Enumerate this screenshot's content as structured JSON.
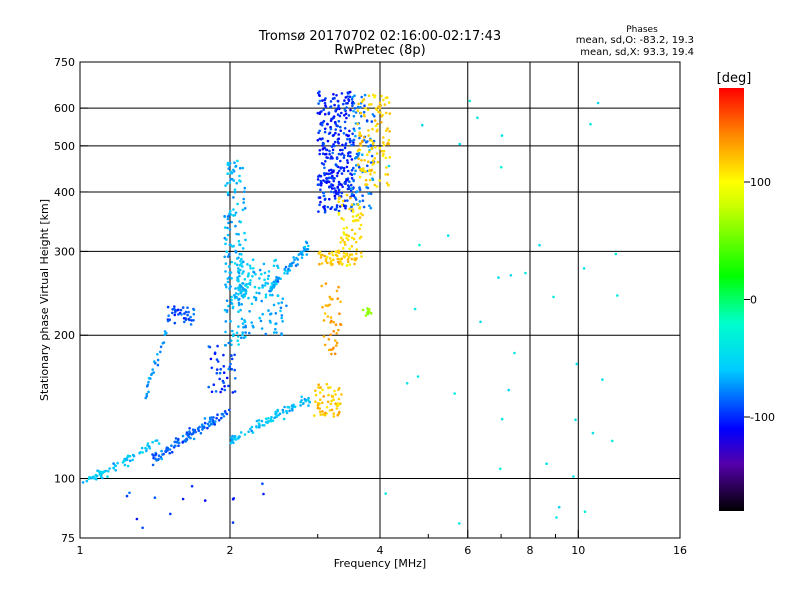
{
  "chart_data": {
    "type": "scatter",
    "title": "Tromsø 20170702 02:16:00-02:17:43",
    "subtitle": "RwPretec (8p)",
    "xlabel": "Frequency [MHz]",
    "ylabel": "Stationary phase Virtual Height [km]",
    "x_scale": "log",
    "y_scale": "log",
    "xlim": [
      1,
      16
    ],
    "ylim": [
      75,
      750
    ],
    "x_ticks": [
      1,
      2,
      4,
      6,
      8,
      10,
      16
    ],
    "x_tick_labels": [
      "1",
      "2",
      "4",
      "6",
      "8",
      "10",
      "16"
    ],
    "x_minor_ticks": [
      3,
      5,
      7,
      9
    ],
    "y_ticks": [
      75,
      100,
      200,
      300,
      400,
      500,
      600,
      750
    ],
    "y_tick_labels": [
      "75",
      "100",
      "200",
      "300",
      "400",
      "500",
      "600",
      "750"
    ],
    "grid": true,
    "legend": {
      "heading": "Phases",
      "lines": [
        "mean, sd,O: -83.2, 19.3",
        "mean, sd,X: 93.3, 19.4"
      ],
      "position": "top-right"
    },
    "colorbar": {
      "label": "[deg]",
      "range": [
        -180,
        180
      ],
      "ticks": [
        100,
        0,
        -100
      ],
      "tick_labels": [
        "100",
        "0",
        "-100"
      ],
      "stops": [
        {
          "v": -180,
          "c": "#000000"
        },
        {
          "v": -140,
          "c": "#5500aa"
        },
        {
          "v": -110,
          "c": "#0000ff"
        },
        {
          "v": -60,
          "c": "#00ccff"
        },
        {
          "v": -20,
          "c": "#00ffcc"
        },
        {
          "v": 20,
          "c": "#00ff00"
        },
        {
          "v": 80,
          "c": "#ccff00"
        },
        {
          "v": 100,
          "c": "#ffff00"
        },
        {
          "v": 140,
          "c": "#ff8800"
        },
        {
          "v": 180,
          "c": "#ff0000"
        }
      ]
    },
    "clusters": [
      {
        "f": [
          1.0,
          1.45
        ],
        "h": [
          97,
          120
        ],
        "shape": "rise",
        "n": 70,
        "phase": -60
      },
      {
        "f": [
          1.4,
          2.0
        ],
        "h": [
          110,
          140
        ],
        "shape": "rise",
        "n": 110,
        "phase": -85
      },
      {
        "f": [
          1.35,
          1.5
        ],
        "h": [
          150,
          205
        ],
        "shape": "rise",
        "n": 25,
        "phase": -75
      },
      {
        "f": [
          1.5,
          1.7
        ],
        "h": [
          210,
          230
        ],
        "shape": "band",
        "n": 40,
        "phase": -90
      },
      {
        "f": [
          1.8,
          2.05
        ],
        "h": [
          150,
          190
        ],
        "shape": "band",
        "n": 40,
        "phase": -95
      },
      {
        "f": [
          1.95,
          2.15
        ],
        "h": [
          190,
          470
        ],
        "shape": "band",
        "n": 170,
        "phase": -65
      },
      {
        "f": [
          2.0,
          2.9
        ],
        "h": [
          120,
          148
        ],
        "shape": "rise",
        "n": 90,
        "phase": -60
      },
      {
        "f": [
          2.05,
          2.5
        ],
        "h": [
          240,
          290
        ],
        "shape": "band",
        "n": 90,
        "phase": -60
      },
      {
        "f": [
          2.4,
          2.9
        ],
        "h": [
          250,
          310
        ],
        "shape": "rise",
        "n": 60,
        "phase": -70
      },
      {
        "f": [
          2.1,
          2.6
        ],
        "h": [
          200,
          240
        ],
        "shape": "band",
        "n": 40,
        "phase": -70
      },
      {
        "f": [
          3.0,
          3.55
        ],
        "h": [
          360,
          650
        ],
        "shape": "band",
        "n": 320,
        "phase": -100
      },
      {
        "f": [
          3.5,
          3.9
        ],
        "h": [
          370,
          640
        ],
        "shape": "band",
        "n": 90,
        "phase": -80
      },
      {
        "f": [
          3.6,
          4.2
        ],
        "h": [
          410,
          640
        ],
        "shape": "band",
        "n": 120,
        "phase": 115
      },
      {
        "f": [
          3.3,
          3.7
        ],
        "h": [
          280,
          400
        ],
        "shape": "band",
        "n": 70,
        "phase": 110
      },
      {
        "f": [
          3.0,
          3.6
        ],
        "h": [
          280,
          300
        ],
        "shape": "band",
        "n": 50,
        "phase": 120
      },
      {
        "f": [
          3.05,
          3.35
        ],
        "h": [
          180,
          260
        ],
        "shape": "band",
        "n": 40,
        "phase": 130
      },
      {
        "f": [
          2.95,
          3.35
        ],
        "h": [
          135,
          158
        ],
        "shape": "band",
        "n": 60,
        "phase": 120
      },
      {
        "f": [
          3.7,
          3.85
        ],
        "h": [
          220,
          228
        ],
        "shape": "band",
        "n": 10,
        "phase": 60
      },
      {
        "f": [
          4.0,
          12.0
        ],
        "h": [
          80,
          660
        ],
        "shape": "band",
        "n": 40,
        "phase": -40
      },
      {
        "f": [
          1.0,
          2.5
        ],
        "h": [
          78,
          100
        ],
        "shape": "band",
        "n": 14,
        "phase": -100
      }
    ]
  }
}
